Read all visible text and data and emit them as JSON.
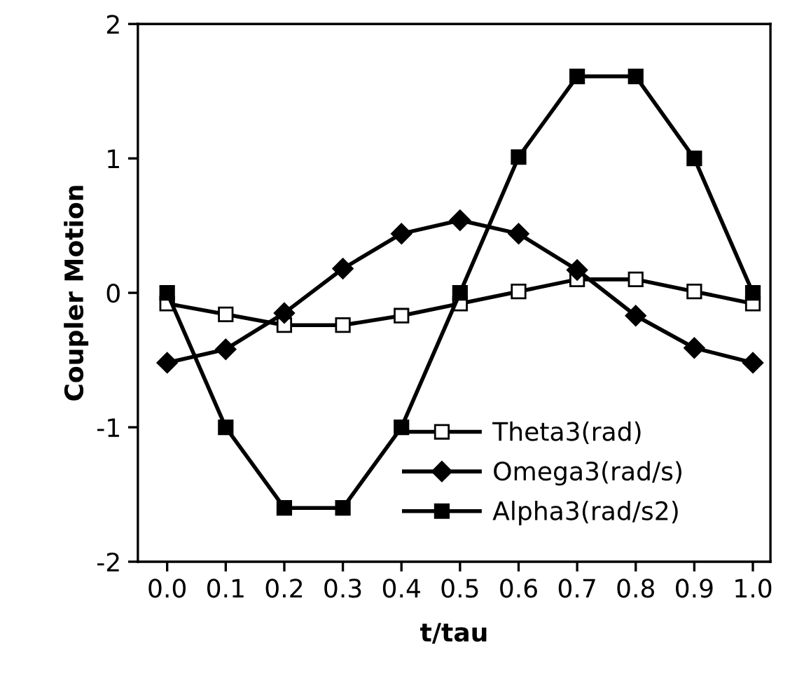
{
  "chart_data": {
    "type": "line",
    "xlabel": "t/tau",
    "ylabel": "Coupler Motion",
    "x": [
      0.0,
      0.1,
      0.2,
      0.3,
      0.4,
      0.5,
      0.6,
      0.7,
      0.8,
      0.9,
      1.0
    ],
    "series": [
      {
        "name": "Theta3(rad)",
        "color": "#000000",
        "marker": "square",
        "values": [
          -0.08,
          -0.16,
          -0.24,
          -0.24,
          -0.17,
          -0.08,
          0.01,
          0.1,
          0.1,
          0.01,
          -0.08
        ]
      },
      {
        "name": "Omega3(rad/s)",
        "color": "#000000",
        "marker": "diamond",
        "values": [
          -0.52,
          -0.42,
          -0.15,
          0.18,
          0.44,
          0.54,
          0.44,
          0.17,
          -0.17,
          -0.41,
          -0.52
        ]
      },
      {
        "name": "Alpha3(rad/s2)",
        "color": "#000000",
        "marker": "square",
        "values": [
          0.0,
          -1.0,
          -1.6,
          -1.6,
          -1.0,
          0.0,
          1.01,
          1.61,
          1.61,
          1.0,
          0.0
        ]
      }
    ],
    "xlim": [
      -0.05,
      1.03
    ],
    "ylim": [
      -2,
      2
    ],
    "xticks": [
      {
        "value": 0.0,
        "label": "0.0"
      },
      {
        "value": 0.1,
        "label": "0.1"
      },
      {
        "value": 0.2,
        "label": "0.2"
      },
      {
        "value": 0.3,
        "label": "0.3"
      },
      {
        "value": 0.4,
        "label": "0.4"
      },
      {
        "value": 0.5,
        "label": "0.5"
      },
      {
        "value": 0.6,
        "label": "0.6"
      },
      {
        "value": 0.7,
        "label": "0.7"
      },
      {
        "value": 0.8,
        "label": "0.8"
      },
      {
        "value": 0.9,
        "label": "0.9"
      },
      {
        "value": 1.0,
        "label": "1.0"
      }
    ],
    "yticks": [
      -2,
      -1,
      0,
      1,
      2
    ],
    "grid": false,
    "legend": "bottom right",
    "line_style": "solid"
  }
}
